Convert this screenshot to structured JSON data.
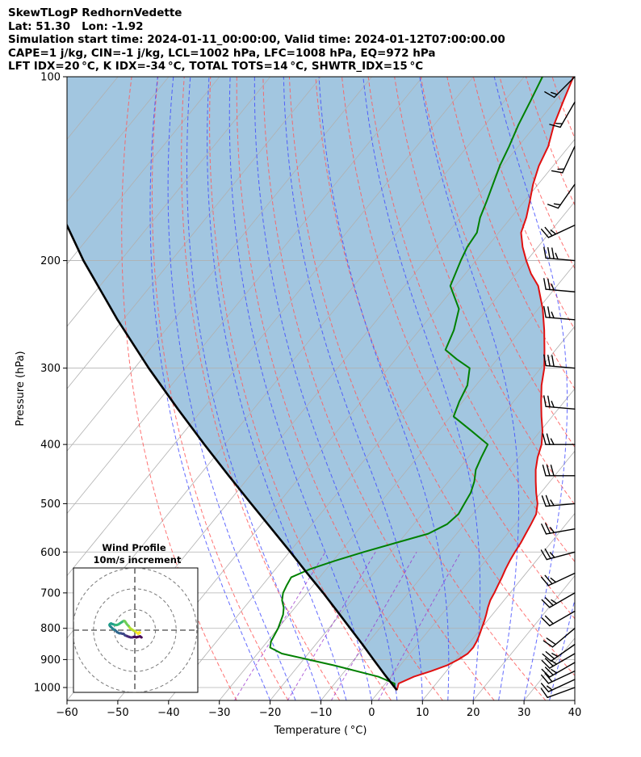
{
  "header": {
    "lines": [
      "SkewTLogP RedhornVedette",
      "Lat: 51.30   Lon: -1.92",
      "Simulation start time: 2024-01-11_00:00:00, Valid time: 2024-01-12T07:00:00.00",
      "CAPE=1 j/kg, CIN=-1 j/kg, LCL=1002 hPa, LFC=1008 hPa, EQ=972 hPa",
      "LFT IDX=20 °C, K IDX=-34 °C, TOTAL TOTS=14 °C, SHWTR_IDX=15 °C"
    ]
  },
  "chart_data": {
    "type": "line",
    "subtype": "skew-T log-P",
    "xlabel": "Temperature ( °C)",
    "ylabel": "Pressure (hPa)",
    "xlim": [
      -60,
      40
    ],
    "ylim": [
      1050,
      100
    ],
    "y_scale": "log",
    "x_ticks": [
      -60,
      -50,
      -40,
      -30,
      -20,
      -10,
      0,
      10,
      20,
      30,
      40
    ],
    "x_tick_labels": [
      "−60",
      "−50",
      "−40",
      "−30",
      "−20",
      "−10",
      "0",
      "10",
      "20",
      "30",
      "40"
    ],
    "y_ticks": [
      1000,
      900,
      800,
      700,
      600,
      500,
      400,
      300,
      200,
      100
    ],
    "y_tick_labels": [
      "1000",
      "900",
      "800",
      "700",
      "600",
      "500",
      "400",
      "300",
      "200",
      "100"
    ],
    "grid": true,
    "colors": {
      "temperature": "#e01010",
      "dewpoint": "#008000",
      "parcel": "#000000",
      "cape_fill": "#a2c6e0",
      "dry_adiabat": "#ff5a5a",
      "moist_adiabat": "#3c46ff",
      "mixing_ratio": "#9932cc",
      "isotherm_grid": "#b0b0b0"
    },
    "series": [
      {
        "key": "temperature",
        "p": [
          1010,
          985,
          960,
          940,
          920,
          900,
          880,
          860,
          840,
          820,
          800,
          780,
          760,
          740,
          720,
          700,
          680,
          660,
          640,
          620,
          600,
          580,
          560,
          540,
          520,
          500,
          480,
          460,
          440,
          420,
          400,
          380,
          360,
          340,
          320,
          300,
          280,
          260,
          240,
          220,
          210,
          200,
          190,
          180,
          170,
          160,
          150,
          140,
          130,
          120,
          110,
          100
        ],
        "t": [
          3.3,
          2.6,
          4.5,
          7.0,
          9.2,
          10.5,
          11.4,
          11.5,
          11.2,
          10.7,
          10.1,
          9.5,
          8.8,
          8.0,
          7.3,
          6.9,
          6.4,
          5.9,
          5.3,
          4.8,
          4.4,
          4.1,
          3.6,
          3.1,
          2.5,
          1.1,
          -0.9,
          -2.8,
          -4.7,
          -6.3,
          -7.6,
          -9.6,
          -12.1,
          -14.6,
          -17.1,
          -19.3,
          -22.2,
          -25.4,
          -29.1,
          -33.7,
          -37.1,
          -40.1,
          -43.0,
          -45.6,
          -47.0,
          -48.9,
          -51.0,
          -52.8,
          -54.1,
          -56.4,
          -58.3,
          -60.3
        ]
      },
      {
        "key": "dewpoint",
        "p": [
          1000,
          985,
          960,
          920,
          880,
          860,
          840,
          800,
          760,
          740,
          720,
          700,
          680,
          660,
          640,
          620,
          600,
          580,
          560,
          540,
          520,
          500,
          480,
          460,
          440,
          420,
          400,
          380,
          360,
          340,
          320,
          300,
          290,
          280,
          260,
          240,
          220,
          200,
          190,
          180,
          170,
          160,
          150,
          140,
          130,
          120,
          110,
          100
        ],
        "t": [
          2.4,
          1.8,
          -2.5,
          -13.0,
          -25.2,
          -28.5,
          -29.3,
          -30.0,
          -31.2,
          -32.2,
          -33.7,
          -34.7,
          -35.2,
          -35.6,
          -33.2,
          -29.6,
          -25.4,
          -20.6,
          -15.6,
          -13.4,
          -12.8,
          -13.3,
          -13.8,
          -14.9,
          -16.5,
          -17.4,
          -18.2,
          -23.6,
          -29.4,
          -30.7,
          -31.7,
          -34.0,
          -38.0,
          -41.7,
          -43.2,
          -45.6,
          -51.0,
          -53.0,
          -53.9,
          -54.3,
          -56.1,
          -57.4,
          -58.9,
          -60.5,
          -61.8,
          -63.4,
          -64.8,
          -66.4
        ]
      },
      {
        "key": "parcel",
        "p": [
          1010,
          950,
          900,
          850,
          800,
          750,
          700,
          650,
          600,
          550,
          500,
          450,
          400,
          350,
          300,
          250,
          200,
          150,
          100
        ],
        "t": [
          3.3,
          -1.8,
          -6.2,
          -10.8,
          -15.8,
          -21.1,
          -26.8,
          -33.1,
          -39.8,
          -47.2,
          -55.3,
          -64.2,
          -74.0,
          -84.9,
          -97.2,
          -111.1,
          -127.3,
          -146.6,
          -171.2
        ]
      }
    ],
    "wind_barbs": {
      "p": [
        1000,
        970,
        940,
        910,
        880,
        850,
        800,
        750,
        700,
        650,
        600,
        550,
        500,
        450,
        400,
        350,
        300,
        250,
        225,
        200,
        175,
        150,
        130,
        110,
        100
      ],
      "speed_kt": [
        10,
        15,
        20,
        25,
        25,
        25,
        20,
        20,
        25,
        25,
        25,
        25,
        25,
        30,
        25,
        25,
        30,
        25,
        25,
        35,
        25,
        15,
        15,
        15,
        15
      ],
      "dir_deg": [
        250,
        245,
        245,
        240,
        240,
        235,
        230,
        240,
        240,
        245,
        255,
        260,
        265,
        270,
        270,
        275,
        275,
        275,
        275,
        275,
        245,
        215,
        205,
        210,
        225
      ]
    },
    "hodograph": {
      "title": "Wind Profile",
      "subtitle": "10m/s increment",
      "ring_speeds_ms": [
        10,
        20,
        30
      ],
      "u": [
        6.5,
        5.0,
        3.0,
        1.5,
        0.0,
        -1.0,
        -2.5,
        -4.0,
        -5.5,
        -7.0,
        -8.0,
        -9.5,
        -10.5,
        -11.0,
        -12.0,
        -13.5,
        -15.0,
        -16.0,
        -17.0,
        -17.5,
        -18.0,
        -19.0,
        -20.0,
        -21.0,
        -22.0,
        -23.0,
        -24.0,
        -24.5,
        -24.0,
        -23.0,
        -22.0,
        -20.5,
        -19.0,
        -17.5,
        -16.0,
        -14.5,
        -13.0,
        -11.5,
        -10.5,
        -9.5,
        -8.5,
        -7.5,
        -6.0,
        -5.0,
        -4.0,
        -2.5,
        -1.0,
        0.5,
        1.5,
        2.5,
        3.5,
        4.0,
        4.5,
        5.0
      ],
      "v": [
        -7.0,
        -6.0,
        -6.5,
        -7.0,
        -6.5,
        -6.5,
        -7.0,
        -7.0,
        -6.5,
        -6.0,
        -5.5,
        -5.0,
        -4.0,
        -3.5,
        -3.5,
        -3.0,
        -3.0,
        -2.5,
        -2.0,
        -1.5,
        -1.0,
        0.0,
        0.5,
        1.0,
        2.0,
        3.0,
        4.0,
        5.0,
        6.0,
        6.5,
        6.0,
        5.5,
        5.0,
        5.0,
        5.5,
        6.5,
        7.5,
        8.5,
        9.0,
        8.5,
        7.0,
        5.5,
        4.0,
        2.5,
        1.5,
        0.5,
        -0.5,
        -1.0,
        -2.0,
        -3.0,
        -3.5,
        -2.5,
        -2.0,
        -2.5
      ]
    }
  }
}
